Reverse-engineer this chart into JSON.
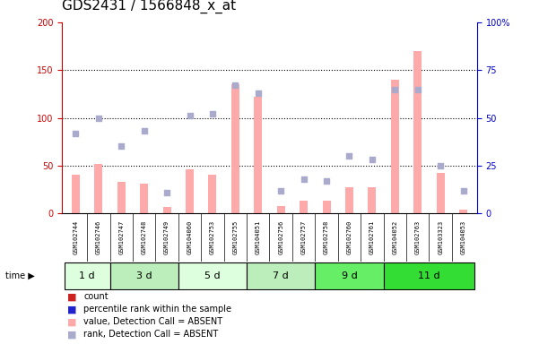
{
  "title": "GDS2431 / 1566848_x_at",
  "samples": [
    "GSM102744",
    "GSM102746",
    "GSM102747",
    "GSM102748",
    "GSM102749",
    "GSM104060",
    "GSM102753",
    "GSM102755",
    "GSM104051",
    "GSM102756",
    "GSM102757",
    "GSM102758",
    "GSM102760",
    "GSM102761",
    "GSM104052",
    "GSM102763",
    "GSM103323",
    "GSM104053"
  ],
  "time_groups": [
    {
      "label": "1 d",
      "start": 0,
      "end": 2,
      "color": "#ddffdd"
    },
    {
      "label": "3 d",
      "start": 2,
      "end": 5,
      "color": "#bbeebb"
    },
    {
      "label": "5 d",
      "start": 5,
      "end": 8,
      "color": "#ddffdd"
    },
    {
      "label": "7 d",
      "start": 8,
      "end": 11,
      "color": "#bbeebb"
    },
    {
      "label": "9 d",
      "start": 11,
      "end": 14,
      "color": "#66ee66"
    },
    {
      "label": "11 d",
      "start": 14,
      "end": 18,
      "color": "#33dd33"
    }
  ],
  "absent_bar_values": [
    40,
    52,
    33,
    31,
    7,
    46,
    40,
    135,
    122,
    8,
    13,
    13,
    27,
    27,
    140,
    170,
    42,
    4
  ],
  "absent_rank_values": [
    42,
    50,
    35,
    43,
    11,
    51,
    52,
    67,
    63,
    12,
    18,
    17,
    30,
    28,
    65,
    65,
    25,
    12
  ],
  "left_ylim": [
    0,
    200
  ],
  "right_ylim": [
    0,
    100
  ],
  "left_yticks": [
    0,
    50,
    100,
    150,
    200
  ],
  "right_yticks": [
    0,
    25,
    50,
    75,
    100
  ],
  "right_yticklabels": [
    "0",
    "25",
    "50",
    "75",
    "100%"
  ],
  "bar_color_present": "#cc2222",
  "bar_color_absent": "#ffaaaa",
  "dot_color_present": "#2222cc",
  "dot_color_absent": "#aaaacc",
  "bg_color": "#ffffff",
  "sample_bg": "#cccccc",
  "plot_area_bg": "#ffffff",
  "legend_items": [
    {
      "label": "count",
      "color": "#cc2222"
    },
    {
      "label": "percentile rank within the sample",
      "color": "#2222cc"
    },
    {
      "label": "value, Detection Call = ABSENT",
      "color": "#ffaaaa"
    },
    {
      "label": "rank, Detection Call = ABSENT",
      "color": "#aaaacc"
    }
  ],
  "bar_width": 0.35,
  "dot_size": 20,
  "dotted_lines": [
    50,
    100,
    150
  ],
  "title_fontsize": 11,
  "tick_fontsize": 7,
  "legend_fontsize": 7,
  "sample_fontsize": 5,
  "time_fontsize": 8
}
